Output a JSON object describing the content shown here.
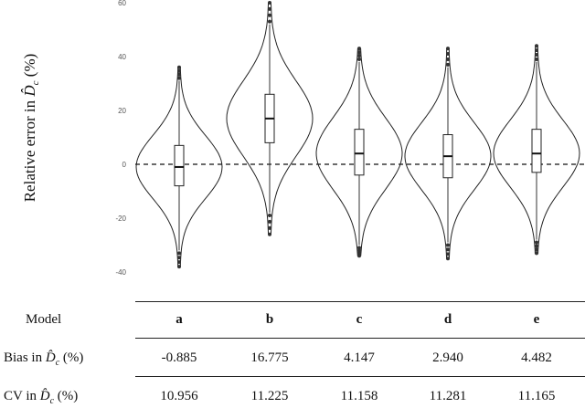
{
  "chart_data": {
    "type": "violin",
    "ylabel_prefix": "Relative error in ",
    "ylabel_symbol": "D̂",
    "ylabel_subscript": "c",
    "ylabel_suffix": " (%)",
    "ylim": [
      -44,
      60
    ],
    "yticks": [
      "-40",
      "-20",
      "0",
      "20",
      "40",
      "60"
    ],
    "reference_line_y": 0,
    "categories": [
      "a",
      "b",
      "c",
      "d",
      "e"
    ],
    "series": [
      {
        "category": "a",
        "q1": -8,
        "median": -1,
        "q3": 7,
        "whisker_low": -32,
        "whisker_high": 31,
        "min": -38,
        "max": 36
      },
      {
        "category": "b",
        "q1": 8,
        "median": 17,
        "q3": 26,
        "whisker_low": -18,
        "whisker_high": 52,
        "min": -26,
        "max": 60
      },
      {
        "category": "c",
        "q1": -4,
        "median": 4,
        "q3": 13,
        "whisker_low": -30,
        "whisker_high": 38,
        "min": -34,
        "max": 43
      },
      {
        "category": "d",
        "q1": -5,
        "median": 3,
        "q3": 11,
        "whisker_low": -29,
        "whisker_high": 36,
        "min": -35,
        "max": 43
      },
      {
        "category": "e",
        "q1": -3,
        "median": 4,
        "q3": 13,
        "whisker_low": -28,
        "whisker_high": 38,
        "min": -33,
        "max": 44
      }
    ]
  },
  "table": {
    "model_label": "Model",
    "bias_label_prefix": "Bias in ",
    "cv_label_prefix": "CV in ",
    "label_symbol": "D̂",
    "label_subscript": "c",
    "label_suffix": " (%)",
    "models": [
      "a",
      "b",
      "c",
      "d",
      "e"
    ],
    "bias": [
      "-0.885",
      "16.775",
      "4.147",
      "2.940",
      "4.482"
    ],
    "cv": [
      "10.956",
      "11.225",
      "11.158",
      "11.281",
      "11.165"
    ]
  }
}
